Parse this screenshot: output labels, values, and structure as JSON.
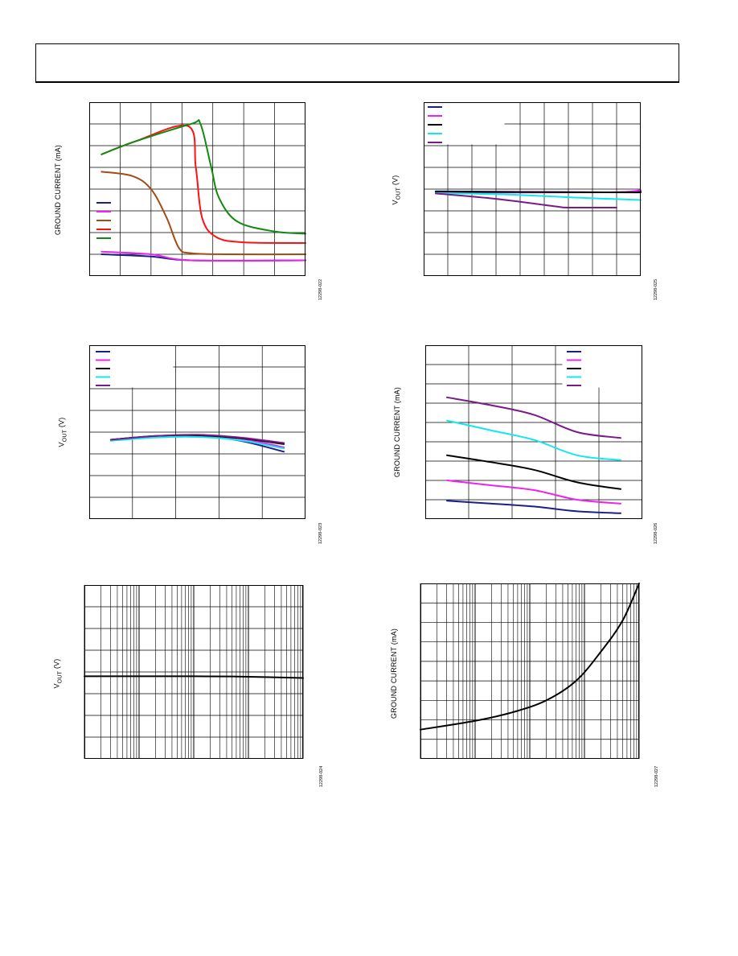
{
  "header": {
    "text": ""
  },
  "colors": {
    "navy": "#1a1f8a",
    "magenta": "#ee22ee",
    "black": "#000000",
    "cyan": "#11e8ee",
    "purple": "#7a1a8a",
    "brown": "#a34c14",
    "red": "#ff1111",
    "green": "#118a11"
  },
  "charts": [
    {
      "id": "c1",
      "ylabel": "GROUND CURRENT (mA)",
      "fig_code": "12298-022",
      "chart_data": {
        "type": "line",
        "xscale": "linear",
        "xlim": [
          0,
          7
        ],
        "ylim": [
          0,
          8
        ],
        "grid": true,
        "legend": "left-middle",
        "legend_colors": [
          "navy",
          "magenta",
          "brown",
          "red",
          "green"
        ],
        "series": [
          {
            "color": "navy",
            "points": [
              [
                0.4,
                1.0
              ],
              [
                2.0,
                0.9
              ],
              [
                3.3,
                0.72
              ],
              [
                7.0,
                0.72
              ]
            ]
          },
          {
            "color": "magenta",
            "points": [
              [
                0.4,
                1.12
              ],
              [
                2.0,
                1.0
              ],
              [
                3.3,
                0.72
              ],
              [
                7.0,
                0.72
              ]
            ]
          },
          {
            "color": "brown",
            "points": [
              [
                0.4,
                4.8
              ],
              [
                1.4,
                4.6
              ],
              [
                2.0,
                4.0
              ],
              [
                2.5,
                2.7
              ],
              [
                2.9,
                1.3
              ],
              [
                3.3,
                1.05
              ],
              [
                4.5,
                1.0
              ],
              [
                7.0,
                1.0
              ]
            ]
          },
          {
            "color": "red",
            "points": [
              [
                0.4,
                5.6
              ],
              [
                1.5,
                6.2
              ],
              [
                3.2,
                6.9
              ],
              [
                3.45,
                5.0
              ],
              [
                3.65,
                2.7
              ],
              [
                4.1,
                1.8
              ],
              [
                5.0,
                1.55
              ],
              [
                7.0,
                1.52
              ]
            ]
          },
          {
            "color": "green",
            "points": [
              [
                0.4,
                5.6
              ],
              [
                1.5,
                6.2
              ],
              [
                3.3,
                7.0
              ],
              [
                3.6,
                7.0
              ],
              [
                3.95,
                5.0
              ],
              [
                4.2,
                3.6
              ],
              [
                4.8,
                2.5
              ],
              [
                6.0,
                2.05
              ],
              [
                7.0,
                1.95
              ]
            ]
          }
        ]
      }
    },
    {
      "id": "c2",
      "ylabel": "VOUT (V)",
      "fig_code": "12298-025",
      "chart_data": {
        "type": "line",
        "xscale": "linear",
        "xlim": [
          0,
          9
        ],
        "ylim": [
          0,
          8
        ],
        "grid": true,
        "legend": "top-left",
        "legend_colors": [
          "navy",
          "magenta",
          "black",
          "cyan",
          "purple"
        ],
        "series": [
          {
            "color": "navy",
            "points": [
              [
                0.5,
                3.9
              ],
              [
                7.5,
                3.85
              ],
              [
                9.0,
                3.9
              ]
            ]
          },
          {
            "color": "magenta",
            "points": [
              [
                0.5,
                3.85
              ],
              [
                7.5,
                3.85
              ],
              [
                9.0,
                3.95
              ]
            ]
          },
          {
            "color": "black",
            "points": [
              [
                0.5,
                3.88
              ],
              [
                7.5,
                3.85
              ],
              [
                9.0,
                3.85
              ]
            ]
          },
          {
            "color": "cyan",
            "points": [
              [
                0.5,
                3.82
              ],
              [
                3.5,
                3.75
              ],
              [
                6.5,
                3.6
              ],
              [
                9.0,
                3.5
              ]
            ]
          },
          {
            "color": "purple",
            "points": [
              [
                0.5,
                3.8
              ],
              [
                3.0,
                3.55
              ],
              [
                5.5,
                3.2
              ],
              [
                6.0,
                3.15
              ],
              [
                8.0,
                3.15
              ]
            ]
          }
        ]
      }
    },
    {
      "id": "c3",
      "ylabel": "VOUT (V)",
      "fig_code": "12298-023",
      "chart_data": {
        "type": "line",
        "xscale": "linear",
        "xlim": [
          0,
          5
        ],
        "ylim": [
          0,
          8
        ],
        "grid": true,
        "legend": "top-left",
        "legend_colors": [
          "navy",
          "magenta",
          "black",
          "cyan",
          "purple"
        ],
        "series": [
          {
            "color": "navy",
            "points": [
              [
                0.5,
                3.65
              ],
              [
                1.5,
                3.8
              ],
              [
                2.5,
                3.85
              ],
              [
                3.5,
                3.6
              ],
              [
                4.5,
                3.1
              ]
            ]
          },
          {
            "color": "magenta",
            "points": [
              [
                0.5,
                3.65
              ],
              [
                1.5,
                3.8
              ],
              [
                2.5,
                3.8
              ],
              [
                3.5,
                3.7
              ],
              [
                4.5,
                3.3
              ]
            ]
          },
          {
            "color": "black",
            "points": [
              [
                0.5,
                3.65
              ],
              [
                1.5,
                3.82
              ],
              [
                2.5,
                3.85
              ],
              [
                3.5,
                3.72
              ],
              [
                4.5,
                3.45
              ]
            ]
          },
          {
            "color": "cyan",
            "points": [
              [
                0.5,
                3.6
              ],
              [
                1.5,
                3.75
              ],
              [
                2.5,
                3.78
              ],
              [
                3.5,
                3.62
              ],
              [
                4.5,
                3.25
              ]
            ]
          },
          {
            "color": "purple",
            "points": [
              [
                0.5,
                3.65
              ],
              [
                1.5,
                3.82
              ],
              [
                2.5,
                3.88
              ],
              [
                3.5,
                3.75
              ],
              [
                4.5,
                3.5
              ]
            ]
          }
        ]
      }
    },
    {
      "id": "c4",
      "ylabel": "GROUND CURRENT (mA)",
      "fig_code": "12298-026",
      "chart_data": {
        "type": "line",
        "xscale": "linear",
        "xlim": [
          0,
          5
        ],
        "ylim": [
          0,
          9
        ],
        "grid": true,
        "legend": "top-right",
        "legend_colors": [
          "navy",
          "magenta",
          "black",
          "cyan",
          "purple"
        ],
        "series": [
          {
            "color": "navy",
            "points": [
              [
                0.5,
                0.95
              ],
              [
                1.5,
                0.8
              ],
              [
                2.5,
                0.65
              ],
              [
                3.5,
                0.4
              ],
              [
                4.5,
                0.3
              ]
            ]
          },
          {
            "color": "magenta",
            "points": [
              [
                0.5,
                2.0
              ],
              [
                1.5,
                1.75
              ],
              [
                2.5,
                1.5
              ],
              [
                3.5,
                1.0
              ],
              [
                4.5,
                0.8
              ]
            ]
          },
          {
            "color": "black",
            "points": [
              [
                0.5,
                3.3
              ],
              [
                1.5,
                2.95
              ],
              [
                2.5,
                2.55
              ],
              [
                3.5,
                1.9
              ],
              [
                4.5,
                1.55
              ]
            ]
          },
          {
            "color": "cyan",
            "points": [
              [
                0.5,
                5.1
              ],
              [
                1.5,
                4.6
              ],
              [
                2.5,
                4.1
              ],
              [
                3.5,
                3.3
              ],
              [
                4.5,
                3.05
              ]
            ]
          },
          {
            "color": "purple",
            "points": [
              [
                0.5,
                6.3
              ],
              [
                1.5,
                5.9
              ],
              [
                2.5,
                5.4
              ],
              [
                3.5,
                4.5
              ],
              [
                4.5,
                4.2
              ]
            ]
          }
        ]
      }
    },
    {
      "id": "c5",
      "ylabel": "VOUT (V)",
      "fig_code": "12298-024",
      "chart_data": {
        "type": "line",
        "xscale": "log",
        "xlim": [
          1,
          10000
        ],
        "ylim": [
          0,
          8
        ],
        "grid": true,
        "legend": "",
        "series": [
          {
            "color": "black",
            "points": [
              [
                1,
                3.8
              ],
              [
                100,
                3.8
              ],
              [
                1000,
                3.78
              ],
              [
                10000,
                3.72
              ]
            ]
          }
        ]
      }
    },
    {
      "id": "c6",
      "ylabel": "GROUND CURRENT (mA)",
      "fig_code": "12298-027",
      "chart_data": {
        "type": "line",
        "xscale": "log",
        "xlim": [
          1,
          10000
        ],
        "ylim": [
          0,
          9
        ],
        "grid": true,
        "legend": "",
        "series": [
          {
            "color": "black",
            "points": [
              [
                1,
                1.5
              ],
              [
                10,
                1.95
              ],
              [
                50,
                2.4
              ],
              [
                200,
                3.0
              ],
              [
                700,
                4.0
              ],
              [
                2000,
                5.5
              ],
              [
                5000,
                7.1
              ],
              [
                10000,
                9.0
              ]
            ]
          }
        ]
      }
    }
  ]
}
